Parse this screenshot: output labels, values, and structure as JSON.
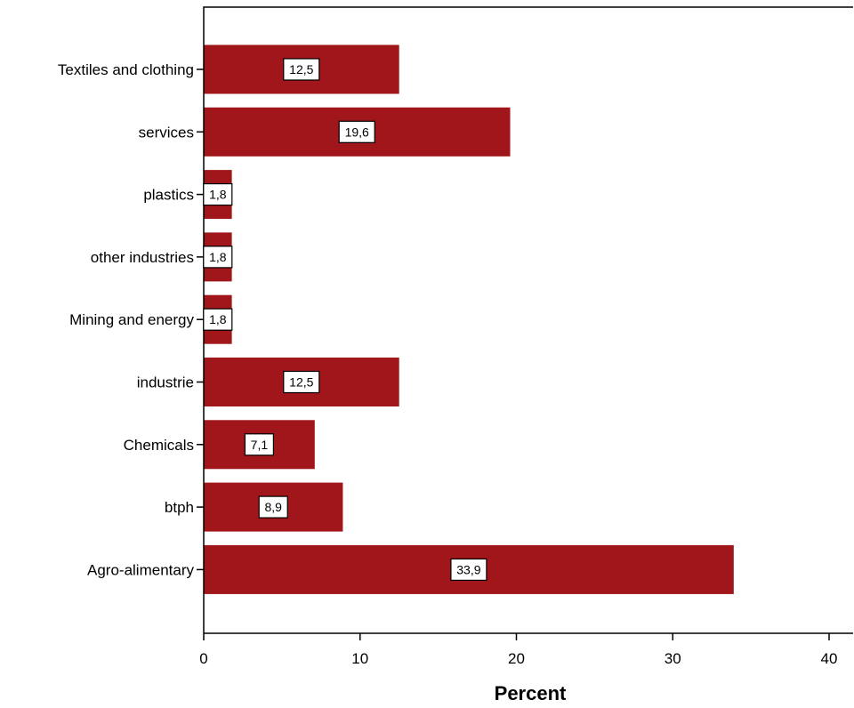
{
  "chart_data": {
    "type": "bar",
    "orientation": "horizontal",
    "categories": [
      "Textiles and clothing",
      "services",
      "plastics",
      "other industries",
      "Mining and energy",
      "industrie",
      "Chemicals",
      "btph",
      "Agro-alimentary"
    ],
    "values": [
      12.5,
      19.6,
      1.8,
      1.8,
      1.8,
      12.5,
      7.1,
      8.9,
      33.9
    ],
    "data_labels": [
      "12,5",
      "19,6",
      "1,8",
      "1,8",
      "1,8",
      "12,5",
      "7,1",
      "8,9",
      "33,9"
    ],
    "xlabel": "Percent",
    "ylabel": "",
    "xlim": [
      0,
      40
    ],
    "xticks": [
      0,
      10,
      20,
      30,
      40
    ],
    "bar_color": "#a0161a",
    "grid": false,
    "legend": "none"
  }
}
